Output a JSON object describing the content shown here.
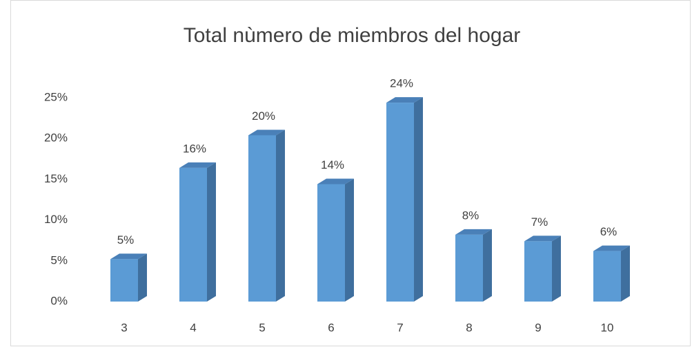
{
  "chart_data": {
    "type": "bar3d",
    "title": "Total nùmero de miembros del hogar",
    "categories": [
      "3",
      "4",
      "5",
      "6",
      "7",
      "8",
      "9",
      "10"
    ],
    "values": [
      5.2,
      16.4,
      20.4,
      14.4,
      24.4,
      8.2,
      7.4,
      6.2
    ],
    "value_labels": [
      "5%",
      "16%",
      "20%",
      "14%",
      "24%",
      "8%",
      "7%",
      "6%"
    ],
    "color": "#5b9bd5",
    "ylim": [
      0,
      25
    ],
    "yticks": [
      {
        "value": 0,
        "label": "0%"
      },
      {
        "value": 5,
        "label": "5%"
      },
      {
        "value": 10,
        "label": "10%"
      },
      {
        "value": 15,
        "label": "15%"
      },
      {
        "value": 20,
        "label": "20%"
      },
      {
        "value": 25,
        "label": "25%"
      }
    ],
    "grid": false
  }
}
